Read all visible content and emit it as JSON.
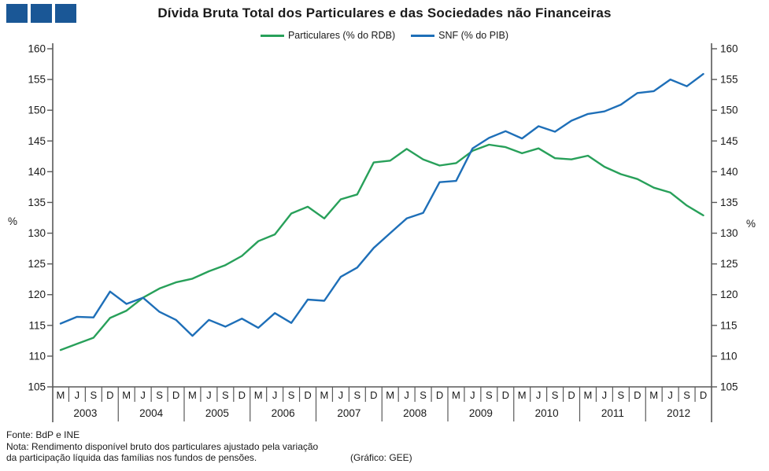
{
  "title": "Dívida Bruta Total dos Particulares e das Sociedades não Financeiras",
  "logo": {
    "square_count": 3,
    "color": "#1a5796"
  },
  "legend": [
    {
      "label": "Particulares (% do RDB)",
      "color": "#28a05a"
    },
    {
      "label": "SNF (% do PIB)",
      "color": "#1e6fb8"
    }
  ],
  "y_axis": {
    "unit_label": "%",
    "min": 105,
    "max": 160,
    "tick_step": 5,
    "ticks": [
      105,
      110,
      115,
      120,
      125,
      130,
      135,
      140,
      145,
      150,
      155,
      160
    ],
    "mirrored_right_axis": true
  },
  "x_axis": {
    "quarter_labels": [
      "M",
      "J",
      "S",
      "D"
    ],
    "years": [
      "2003",
      "2004",
      "2005",
      "2006",
      "2007",
      "2008",
      "2009",
      "2010",
      "2011",
      "2012"
    ]
  },
  "chart_data": {
    "type": "line",
    "title": "Dívida Bruta Total dos Particulares e das Sociedades não Financeiras",
    "x": [
      "2003-M",
      "2003-J",
      "2003-S",
      "2003-D",
      "2004-M",
      "2004-J",
      "2004-S",
      "2004-D",
      "2005-M",
      "2005-J",
      "2005-S",
      "2005-D",
      "2006-M",
      "2006-J",
      "2006-S",
      "2006-D",
      "2007-M",
      "2007-J",
      "2007-S",
      "2007-D",
      "2008-M",
      "2008-J",
      "2008-S",
      "2008-D",
      "2009-M",
      "2009-J",
      "2009-S",
      "2009-D",
      "2010-M",
      "2010-J",
      "2010-S",
      "2010-D",
      "2011-M",
      "2011-J",
      "2011-S",
      "2011-D",
      "2012-M",
      "2012-J",
      "2012-S",
      "2012-D"
    ],
    "series": [
      {
        "name": "Particulares (% do RDB)",
        "color": "#28a05a",
        "values": [
          111.0,
          112.0,
          113.0,
          116.2,
          117.4,
          119.5,
          121.0,
          122.0,
          122.6,
          123.8,
          124.8,
          126.3,
          128.7,
          129.8,
          133.2,
          134.3,
          132.4,
          135.5,
          136.3,
          141.5,
          141.8,
          143.7,
          142.0,
          141.0,
          141.4,
          143.4,
          144.4,
          144.0,
          143.0,
          143.8,
          142.2,
          142.0,
          142.6,
          140.8,
          139.6,
          138.8,
          137.4,
          136.6,
          134.5,
          132.9
        ]
      },
      {
        "name": "SNF (% do PIB)",
        "color": "#1e6fb8",
        "values": [
          115.3,
          116.4,
          116.3,
          120.5,
          118.5,
          119.5,
          117.2,
          115.9,
          113.3,
          115.9,
          114.8,
          116.1,
          114.6,
          117.0,
          115.4,
          119.2,
          119.0,
          122.9,
          124.4,
          127.6,
          130.0,
          132.4,
          133.3,
          138.3,
          138.5,
          143.8,
          145.5,
          146.6,
          145.4,
          147.4,
          146.5,
          148.3,
          149.4,
          149.8,
          150.9,
          152.8,
          153.1,
          155.0,
          153.9,
          155.9
        ]
      }
    ],
    "ylim": [
      105,
      160
    ],
    "grid": false,
    "legend_position": "top-center"
  },
  "footer": {
    "source": "Fonte: BdP e INE",
    "note_line1": "Nota: Rendimento disponível  bruto dos particulares ajustado pela variação",
    "note_line2": " da participação líquida das famílias nos fundos de pensões.",
    "credit": "(Gráfico: GEE)"
  }
}
